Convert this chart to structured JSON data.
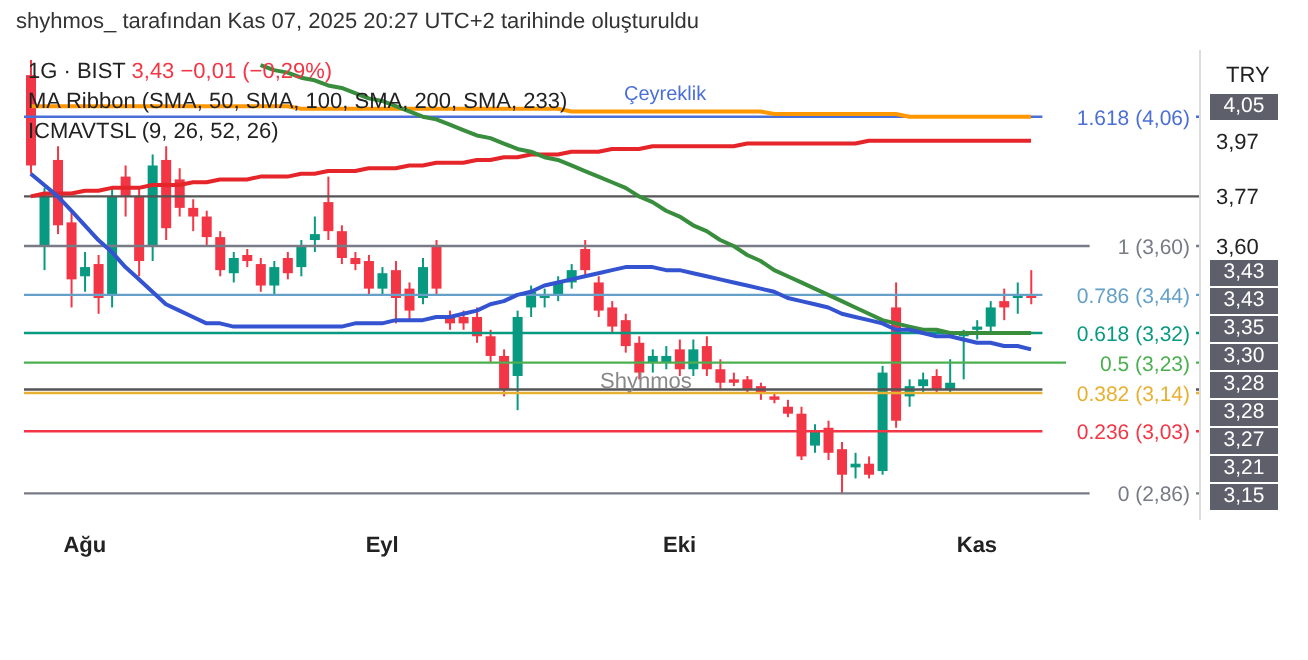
{
  "chart_data": {
    "type": "candlestick",
    "title": "shyhmos_ tarafından Kas 07, 2025 20:27 UTC+2 tarihinde oluşturuldu",
    "subtitle": "1G · BIST",
    "ylabel": "TRY",
    "annotations": [
      "3,43 −0,01 (−0,29%)",
      "MA Ribbon (SMA, 50, SMA, 100, SMA, 200, SMA, 233)",
      "ICMAVTSL (9, 26, 52, 26)",
      "Çeyreklik",
      "Shyhmos",
      "4,05",
      "3,43",
      "3,43",
      "3,35",
      "3,30",
      "3,28",
      "3,28",
      "3,27",
      "3,21",
      "3,15"
    ],
    "categories": [
      null,
      null,
      null,
      null,
      "Ağu",
      null,
      null,
      null,
      null,
      null,
      null,
      null,
      null,
      null,
      null,
      null,
      null,
      null,
      null,
      null,
      null,
      null,
      null,
      null,
      null,
      null,
      "Eyl",
      null,
      null,
      null,
      null,
      null,
      null,
      null,
      null,
      null,
      null,
      null,
      null,
      null,
      null,
      null,
      null,
      null,
      null,
      null,
      null,
      null,
      "Eki",
      null,
      null,
      null,
      null,
      null,
      null,
      null,
      null,
      null,
      null,
      null,
      null,
      null,
      null,
      null,
      null,
      null,
      null,
      null,
      null,
      null,
      "Kas",
      null,
      null,
      null,
      null,
      null,
      null,
      null,
      null,
      null,
      null,
      null,
      null,
      null,
      null,
      null,
      null
    ],
    "log": true,
    "ylim": [
      2.79,
      4.32
    ],
    "yticks": [
      {
        "value": 3.97,
        "label": "3,97"
      },
      {
        "value": 3.77,
        "label": "3,77"
      },
      {
        "value": 3.6,
        "label": "3,60"
      }
    ],
    "grid": false,
    "legend": false,
    "line_style": "solid",
    "marker": "none",
    "series": [
      {
        "ohlc": [
          [
            4.22,
            4.28,
            3.85,
            3.88
          ],
          [
            3.6,
            3.8,
            3.52,
            3.77
          ],
          [
            3.9,
            3.95,
            3.64,
            3.67
          ],
          [
            3.68,
            3.72,
            3.4,
            3.49
          ],
          [
            3.5,
            3.58,
            3.45,
            3.53
          ],
          [
            3.54,
            3.57,
            3.38,
            3.43
          ],
          [
            3.44,
            3.8,
            3.4,
            3.77
          ],
          [
            3.84,
            3.88,
            3.7,
            3.77
          ],
          [
            3.77,
            3.8,
            3.5,
            3.55
          ],
          [
            3.6,
            3.92,
            3.55,
            3.88
          ],
          [
            3.9,
            3.95,
            3.62,
            3.66
          ],
          [
            3.83,
            3.87,
            3.7,
            3.73
          ],
          [
            3.73,
            3.76,
            3.65,
            3.7
          ],
          [
            3.7,
            3.72,
            3.6,
            3.63
          ],
          [
            3.63,
            3.65,
            3.5,
            3.52
          ],
          [
            3.51,
            3.58,
            3.48,
            3.56
          ],
          [
            3.57,
            3.59,
            3.53,
            3.55
          ],
          [
            3.54,
            3.56,
            3.45,
            3.47
          ],
          [
            3.47,
            3.55,
            3.44,
            3.53
          ],
          [
            3.56,
            3.58,
            3.49,
            3.51
          ],
          [
            3.53,
            3.62,
            3.5,
            3.6
          ],
          [
            3.62,
            3.7,
            3.58,
            3.64
          ],
          [
            3.75,
            3.84,
            3.62,
            3.65
          ],
          [
            3.65,
            3.67,
            3.54,
            3.56
          ],
          [
            3.56,
            3.58,
            3.52,
            3.54
          ],
          [
            3.55,
            3.57,
            3.44,
            3.46
          ],
          [
            3.46,
            3.53,
            3.44,
            3.51
          ],
          [
            3.52,
            3.55,
            3.35,
            3.43
          ],
          [
            3.46,
            3.48,
            3.36,
            3.39
          ],
          [
            3.43,
            3.56,
            3.41,
            3.53
          ],
          [
            3.6,
            3.62,
            3.44,
            3.46
          ],
          [
            3.37,
            3.39,
            3.33,
            3.35
          ],
          [
            3.37,
            3.39,
            3.33,
            3.35
          ],
          [
            3.37,
            3.4,
            3.29,
            3.31
          ],
          [
            3.31,
            3.33,
            3.23,
            3.25
          ],
          [
            3.25,
            3.27,
            3.13,
            3.15
          ],
          [
            3.19,
            3.39,
            3.09,
            3.37
          ],
          [
            3.4,
            3.47,
            3.37,
            3.45
          ],
          [
            3.43,
            3.46,
            3.4,
            3.44
          ],
          [
            3.44,
            3.5,
            3.42,
            3.48
          ],
          [
            3.48,
            3.54,
            3.46,
            3.52
          ],
          [
            3.59,
            3.62,
            3.5,
            3.52
          ],
          [
            3.48,
            3.5,
            3.37,
            3.39
          ],
          [
            3.4,
            3.42,
            3.32,
            3.34
          ],
          [
            3.36,
            3.38,
            3.26,
            3.28
          ],
          [
            3.29,
            3.31,
            3.18,
            3.2
          ],
          [
            3.23,
            3.27,
            3.2,
            3.25
          ],
          [
            3.23,
            3.28,
            3.21,
            3.25
          ],
          [
            3.27,
            3.3,
            3.19,
            3.21
          ],
          [
            3.21,
            3.3,
            3.19,
            3.27
          ],
          [
            3.28,
            3.31,
            3.19,
            3.21
          ],
          [
            3.21,
            3.24,
            3.15,
            3.17
          ],
          [
            3.18,
            3.2,
            3.16,
            3.17
          ],
          [
            3.18,
            3.19,
            3.14,
            3.15
          ],
          [
            3.16,
            3.17,
            3.12,
            3.14
          ],
          [
            3.13,
            3.14,
            3.11,
            3.12
          ],
          [
            3.1,
            3.12,
            3.07,
            3.08
          ],
          [
            3.08,
            3.1,
            2.95,
            2.96
          ],
          [
            2.99,
            3.05,
            2.97,
            3.03
          ],
          [
            3.04,
            3.06,
            2.95,
            2.97
          ],
          [
            2.98,
            3.0,
            2.86,
            2.91
          ],
          [
            2.93,
            2.97,
            2.9,
            2.94
          ],
          [
            2.94,
            2.96,
            2.9,
            2.91
          ],
          [
            2.92,
            3.22,
            2.91,
            3.2
          ],
          [
            3.4,
            3.48,
            3.04,
            3.06
          ],
          [
            3.13,
            3.18,
            3.1,
            3.16
          ],
          [
            3.16,
            3.2,
            3.14,
            3.18
          ],
          [
            3.19,
            3.21,
            3.14,
            3.15
          ],
          [
            3.15,
            3.24,
            3.14,
            3.17
          ],
          [
            3.31,
            3.33,
            3.18,
            3.32
          ],
          [
            3.33,
            3.36,
            3.3,
            3.34
          ],
          [
            3.34,
            3.42,
            3.32,
            3.4
          ],
          [
            3.42,
            3.46,
            3.36,
            3.4
          ],
          [
            3.43,
            3.48,
            3.38,
            3.44
          ],
          [
            3.44,
            3.52,
            3.41,
            3.43
          ],
          null,
          null,
          null,
          null,
          null,
          null,
          null,
          null,
          null,
          null,
          null,
          null
        ],
        "colors": [
          "#f23645",
          "#089981",
          "#f23645",
          "#f23645",
          "#089981",
          "#f23645",
          "#089981",
          "#f23645",
          "#f23645",
          "#089981",
          "#f23645",
          "#f23645",
          "#f23645",
          "#f23645",
          "#f23645",
          "#089981",
          "#f23645",
          "#f23645",
          "#089981",
          "#f23645",
          "#089981",
          "#089981",
          "#f23645",
          "#f23645",
          "#f23645",
          "#f23645",
          "#089981",
          "#f23645",
          "#f23645",
          "#089981",
          "#f23645",
          "#f23645",
          "#f23645",
          "#f23645",
          "#f23645",
          "#f23645",
          "#089981",
          "#089981",
          "#089981",
          "#089981",
          "#089981",
          "#f23645",
          "#f23645",
          "#f23645",
          "#f23645",
          "#f23645",
          "#089981",
          "#089981",
          "#f23645",
          "#089981",
          "#f23645",
          "#f23645",
          "#f23645",
          "#f23645",
          "#f23645",
          "#f23645",
          "#f23645",
          "#f23645",
          "#089981",
          "#f23645",
          "#f23645",
          "#089981",
          "#f23645",
          "#089981",
          "#f23645",
          "#089981",
          "#089981",
          "#f23645",
          "#089981",
          "#089981",
          "#089981",
          "#089981",
          "#f23645",
          "#089981",
          "#f23645",
          null,
          null,
          null,
          null,
          null,
          null,
          null,
          null,
          null,
          null,
          null,
          null
        ]
      },
      {
        "type": "line",
        "color": "#ff9800",
        "values": [
          4.1,
          4.1,
          4.1,
          4.1,
          4.1,
          4.1,
          4.1,
          4.1,
          4.1,
          4.1,
          4.1,
          4.1,
          4.1,
          4.1,
          4.1,
          4.1,
          4.1,
          4.1,
          4.1,
          4.1,
          4.09,
          4.09,
          4.09,
          4.09,
          4.09,
          4.09,
          4.09,
          4.09,
          4.09,
          4.09,
          4.09,
          4.09,
          4.09,
          4.09,
          4.09,
          4.09,
          4.09,
          4.09,
          4.09,
          4.09,
          4.08,
          4.08,
          4.08,
          4.08,
          4.08,
          4.08,
          4.08,
          4.08,
          4.08,
          4.08,
          4.08,
          4.08,
          4.08,
          4.08,
          4.08,
          4.07,
          4.07,
          4.07,
          4.07,
          4.07,
          4.07,
          4.07,
          4.07,
          4.07,
          4.07,
          4.06,
          4.06,
          4.06,
          4.06,
          4.06,
          4.06,
          4.06,
          4.06,
          4.06,
          4.06,
          null,
          null,
          null,
          null,
          null,
          null,
          null,
          null,
          null,
          null,
          null,
          null
        ]
      },
      {
        "type": "line",
        "color": "#e5252a",
        "values": [
          3.77,
          3.78,
          3.78,
          3.78,
          3.79,
          3.79,
          3.8,
          3.8,
          3.8,
          3.81,
          3.81,
          3.81,
          3.82,
          3.82,
          3.83,
          3.83,
          3.83,
          3.84,
          3.84,
          3.84,
          3.85,
          3.85,
          3.86,
          3.86,
          3.86,
          3.87,
          3.87,
          3.87,
          3.88,
          3.88,
          3.89,
          3.89,
          3.89,
          3.9,
          3.9,
          3.91,
          3.91,
          3.92,
          3.92,
          3.92,
          3.93,
          3.93,
          3.93,
          3.94,
          3.94,
          3.94,
          3.95,
          3.95,
          3.95,
          3.95,
          3.95,
          3.95,
          3.95,
          3.96,
          3.96,
          3.96,
          3.96,
          3.96,
          3.96,
          3.96,
          3.96,
          3.96,
          3.97,
          3.97,
          3.97,
          3.97,
          3.97,
          3.97,
          3.97,
          3.97,
          3.97,
          3.97,
          3.97,
          3.97,
          3.97,
          null,
          null,
          null,
          null,
          null,
          null,
          null,
          null,
          null,
          null,
          null,
          null
        ]
      },
      {
        "type": "line",
        "color": "#388e3c",
        "values": [
          null,
          null,
          null,
          null,
          null,
          null,
          null,
          null,
          null,
          null,
          null,
          null,
          null,
          null,
          null,
          null,
          null,
          4.26,
          4.24,
          4.23,
          4.21,
          4.2,
          4.18,
          4.17,
          4.15,
          4.13,
          4.12,
          4.1,
          4.08,
          4.06,
          4.05,
          4.03,
          4.01,
          3.99,
          3.98,
          3.96,
          3.94,
          3.93,
          3.91,
          3.9,
          3.88,
          3.86,
          3.84,
          3.82,
          3.8,
          3.77,
          3.75,
          3.72,
          3.7,
          3.67,
          3.65,
          3.62,
          3.6,
          3.57,
          3.55,
          3.52,
          3.5,
          3.48,
          3.46,
          3.44,
          3.42,
          3.4,
          3.38,
          3.36,
          3.35,
          3.34,
          3.33,
          3.33,
          3.32,
          3.32,
          3.32,
          3.32,
          3.32,
          3.32,
          3.32,
          null,
          null,
          null,
          null,
          null,
          null,
          null,
          null,
          null,
          null,
          null,
          null
        ]
      },
      {
        "type": "line",
        "color": "#3453d1",
        "values": [
          3.85,
          3.81,
          3.77,
          3.72,
          3.67,
          3.62,
          3.58,
          3.53,
          3.49,
          3.45,
          3.41,
          3.39,
          3.37,
          3.35,
          3.35,
          3.34,
          3.34,
          3.34,
          3.34,
          3.34,
          3.34,
          3.34,
          3.34,
          3.34,
          3.35,
          3.35,
          3.35,
          3.36,
          3.36,
          3.36,
          3.37,
          3.37,
          3.38,
          3.39,
          3.41,
          3.42,
          3.44,
          3.45,
          3.47,
          3.48,
          3.49,
          3.5,
          3.51,
          3.52,
          3.53,
          3.53,
          3.53,
          3.52,
          3.52,
          3.51,
          3.5,
          3.49,
          3.48,
          3.47,
          3.46,
          3.45,
          3.43,
          3.42,
          3.41,
          3.4,
          3.38,
          3.37,
          3.36,
          3.35,
          3.33,
          3.33,
          3.32,
          3.31,
          3.31,
          3.3,
          3.29,
          3.29,
          3.28,
          3.28,
          3.27,
          null,
          null,
          null,
          null,
          null,
          null,
          null,
          null,
          null,
          null,
          null,
          null
        ]
      }
    ],
    "ref_lines": [
      {
        "axis": "y",
        "value": 4.06,
        "label": "1.618 (4,06)",
        "color": "#4a6fd8"
      },
      {
        "axis": "y",
        "value": 3.77,
        "color": "#555555"
      },
      {
        "axis": "y",
        "value": 3.6,
        "label": "1 (3,60)",
        "color": "#787b86"
      },
      {
        "axis": "y",
        "value": 3.44,
        "label": "0.786 (3,44)",
        "color": "#64a0c8"
      },
      {
        "axis": "y",
        "value": 3.32,
        "label": "0.618 (3,32)",
        "color": "#089981"
      },
      {
        "axis": "y",
        "value": 3.23,
        "label": "0.5 (3,23)",
        "color": "#4caf50"
      },
      {
        "axis": "y",
        "value": 3.15,
        "color": "#555555"
      },
      {
        "axis": "y",
        "value": 3.14,
        "label": "0.382 (3,14)",
        "color": "#e8b030"
      },
      {
        "axis": "y",
        "value": 3.03,
        "label": "0.236 (3,03)",
        "color": "#f23645"
      },
      {
        "axis": "y",
        "value": 2.86,
        "label": "0 (2,86)",
        "color": "#787b86"
      }
    ]
  }
}
